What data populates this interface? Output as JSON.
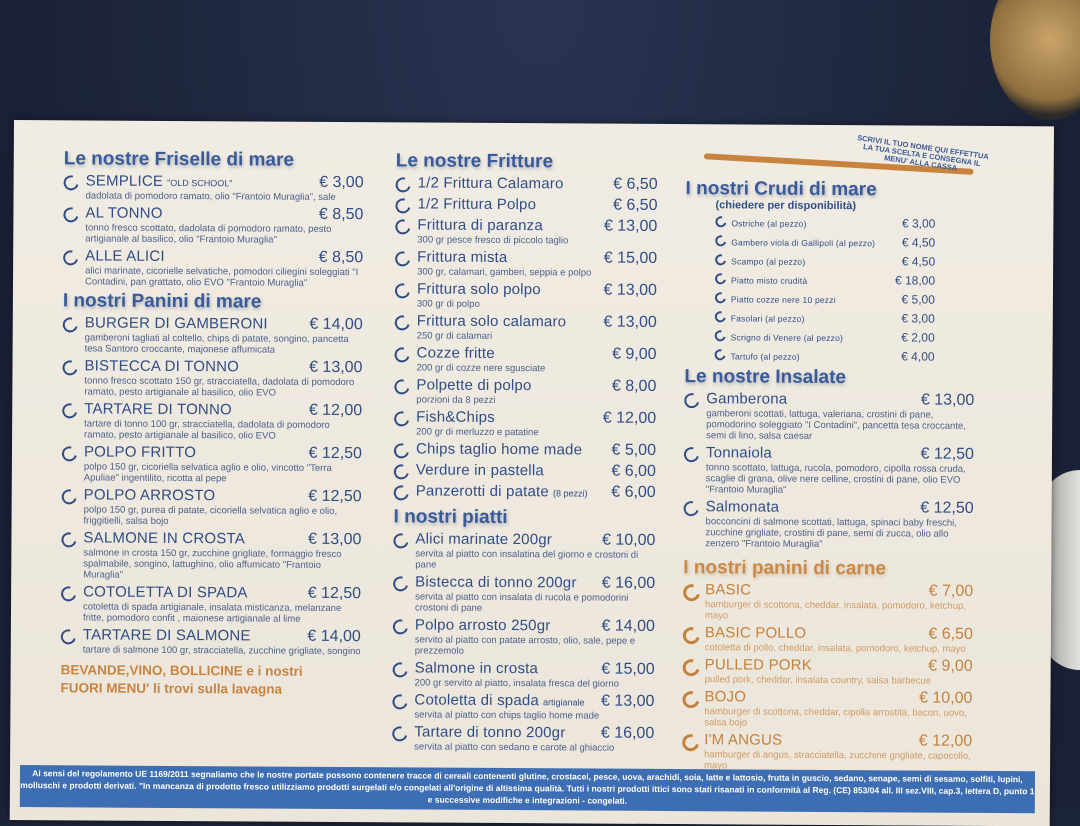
{
  "colors": {
    "blue": "#2f4d86",
    "orange": "#c8843f",
    "band": "#3d6db3"
  },
  "header_note": "SCRIVI IL TUO NOME QUI EFFETTUA LA TUA SCELTA E CONSEGNA IL MENU' ALLA CASSA",
  "sections": [
    {
      "id": "friselle",
      "column": "left",
      "title": "Le nostre Friselle di mare",
      "items": [
        {
          "name": "Semplice",
          "note": "\"OLD SCHOOL\"",
          "price": "€ 3,00",
          "desc": "dadolata di pomodoro ramato, olio \"Frantoio Muraglia\", sale"
        },
        {
          "name": "Al tonno",
          "price": "€ 8,50",
          "desc": "tonno fresco scottato, dadolata di pomodoro ramato, pesto artigianale al basilico, olio \"Frantoio Muraglia\""
        },
        {
          "name": "Alle alici",
          "price": "€ 8,50",
          "desc": "alici marinate, cicorielle selvatiche, pomodori ciliegini soleggiati \"I Contadini, pan grattato, olio EVO \"Frantoio Muraglia\""
        }
      ]
    },
    {
      "id": "panini-mare",
      "column": "left",
      "title": "I nostri Panini di mare",
      "items": [
        {
          "name": "Burger di gamberoni",
          "price": "€ 14,00",
          "desc": "gamberoni tagliati al coltello, chips di patate, songino, pancetta tesa Santoro croccante, majonese affumicata"
        },
        {
          "name": "Bistecca di tonno",
          "price": "€ 13,00",
          "desc": "tonno fresco scottato 150 gr, stracciatella, dadolata di pomodoro ramato, pesto artigianale al basilico, olio EVO"
        },
        {
          "name": "Tartare di tonno",
          "price": "€ 12,00",
          "desc": "tartare di tonno 100 gr, stracciatella, dadolata di pomodoro ramato, pesto artigianale al basilico, olio EVO"
        },
        {
          "name": "Polpo fritto",
          "price": "€ 12,50",
          "desc": "polpo 150 gr, cicoriella selvatica aglio e olio, vincotto \"Terra Apuliae\" ingentilito, ricotta al pepe"
        },
        {
          "name": "Polpo arrosto",
          "price": "€ 12,50",
          "desc": "polpo 150 gr, purea di patate, cicoriella selvatica aglio e olio, friggitielli, salsa bojo"
        },
        {
          "name": "Salmone in crosta",
          "price": "€ 13,00",
          "desc": "salmone in crosta 150 gr, zucchine grigliate, formaggio fresco spalmabile, songino, lattughino, olio affumicato \"Frantoio Muraglia\""
        },
        {
          "name": "Cotoletta di spada",
          "price": "€ 12,50",
          "desc": "cotoletta di spada artigianale, insalata misticanza, melanzane fritte, pomodoro confit , maionese artigianale al lime"
        },
        {
          "name": "Tartare di salmone",
          "price": "€ 14,00",
          "desc": "tartare di salmone 100 gr, stracciatella, zucchine grigliate, songino"
        }
      ]
    },
    {
      "id": "fritture",
      "column": "middle",
      "title": "Le nostre Fritture",
      "items": [
        {
          "name": "1/2 Frittura Calamaro",
          "price": "€ 6,50"
        },
        {
          "name": "1/2 Frittura Polpo",
          "price": "€ 6,50"
        },
        {
          "name": "Frittura di paranza",
          "price": "€ 13,00",
          "desc": "300 gr pesce fresco di piccolo taglio"
        },
        {
          "name": "Frittura mista",
          "price": "€ 15,00",
          "desc": "300 gr, calamari, gamberi, seppia e polpo"
        },
        {
          "name": "Frittura solo polpo",
          "price": "€ 13,00",
          "desc": "300 gr di polpo"
        },
        {
          "name": "Frittura solo calamaro",
          "price": "€ 13,00",
          "desc": "250 gr di calamari"
        },
        {
          "name": "Cozze fritte",
          "price": "€ 9,00",
          "desc": "200 gr di cozze nere sgusciate"
        },
        {
          "name": "Polpette di polpo",
          "price": "€ 8,00",
          "desc": "porzioni da 8 pezzi"
        },
        {
          "name": "Fish&Chips",
          "price": "€ 12,00",
          "desc": "200 gr di merluzzo e patatine"
        },
        {
          "name": "Chips taglio home made",
          "price": "€ 5,00"
        },
        {
          "name": "Verdure in pastella",
          "price": "€ 6,00"
        },
        {
          "name": "Panzerotti di patate",
          "note": "(8 pezzi)",
          "price": "€ 6,00"
        }
      ]
    },
    {
      "id": "piatti",
      "column": "middle",
      "title": "I nostri piatti",
      "items": [
        {
          "name": "Alici marinate 200gr",
          "price": "€ 10,00",
          "desc": "servita al piatto con insalatina del giorno e crostoni di pane"
        },
        {
          "name": "Bistecca di tonno 200gr",
          "price": "€ 16,00",
          "desc": "servita al piatto con insalata di rucola e pomodorini crostoni di pane"
        },
        {
          "name": "Polpo arrosto 250gr",
          "price": "€ 14,00",
          "desc": "servito al piatto con patate arrosto, olio, sale, pepe e prezzemolo"
        },
        {
          "name": "Salmone in crosta",
          "price": "€ 15,00",
          "desc": "200 gr servito al piatto, insalata fresca del giorno"
        },
        {
          "name": "Cotoletta di spada",
          "note": "artigianale",
          "price": "€ 13,00",
          "desc": "servita al piatto con chips taglio home made"
        },
        {
          "name": "Tartare di tonno 200gr",
          "price": "€ 16,00",
          "desc": "servita al piatto con sedano e carote al ghiaccio"
        }
      ]
    },
    {
      "id": "crudi",
      "column": "right",
      "title": "I nostri Crudi di mare",
      "subtitle": "(chiedere per disponibilità)",
      "items": [
        {
          "name": "Ostriche (al pezzo)",
          "price": "€ 3,00"
        },
        {
          "name": "Gambero viola di Gallipoli (al pezzo)",
          "price": "€ 4,50"
        },
        {
          "name": "Scampo (al pezzo)",
          "price": "€ 4,50"
        },
        {
          "name": "Piatto misto crudità",
          "price": "€ 18,00"
        },
        {
          "name": "Piatto cozze nere 10 pezzi",
          "price": "€ 5,00"
        },
        {
          "name": "Fasolari (al pezzo)",
          "price": "€ 3,00"
        },
        {
          "name": "Scrigno di Venere (al pezzo)",
          "price": "€ 2,00"
        },
        {
          "name": "Tartufo (al pezzo)",
          "price": "€ 4,00"
        }
      ]
    },
    {
      "id": "insalate",
      "column": "right",
      "title": "Le nostre Insalate",
      "items": [
        {
          "name": "Gamberona",
          "price": "€ 13,00",
          "desc": "gamberoni scottati, lattuga, valeriana, crostini di pane, pomodorino soleggiato \"I Contadini\", pancetta tesa croccante, semi di lino, salsa caesar"
        },
        {
          "name": "Tonnaiola",
          "price": "€ 12,50",
          "desc": "tonno scottato, lattuga, rucola, pomodoro, cipolla rossa cruda, scaglie di grana, olive nere celline, crostini di pane, olio EVO \"Frantoio Muraglia\""
        },
        {
          "name": "Salmonata",
          "price": "€ 12,50",
          "desc": "bocconcini di salmone scottati, lattuga, spinaci baby freschi, zucchine grigliate, crostini di pane, semi di zucca, olio allo zenzero \"Frantoio Muraglia\""
        }
      ]
    },
    {
      "id": "carne",
      "column": "right",
      "title": "I nostri panini di carne",
      "items": [
        {
          "name": "Basic",
          "price": "€ 7,00",
          "desc": "hamburger di scottona, cheddar, insalata, pomodoro, ketchup, mayo"
        },
        {
          "name": "Basic pollo",
          "price": "€ 6,50",
          "desc": "cotoletta di pollo, cheddar, insalata, pomodoro, ketchup, mayo"
        },
        {
          "name": "Pulled pork",
          "price": "€ 9,00",
          "desc": "pulled pork, cheddar, insalata country, salsa barbecue"
        },
        {
          "name": "Bojo",
          "price": "€ 10,00",
          "desc": "hamburger di scottona, cheddar, cipolla arrostita, bacon, uovo, salsa bojo"
        },
        {
          "name": "I'm Angus",
          "price": "€ 12,00",
          "desc": "hamburger di angus, stracciatella, zucchine grigliate, capocollo, mayo"
        }
      ]
    }
  ],
  "drinks_note": {
    "line1": "BEVANDE,VINO, BOLLICINE e i nostri",
    "line2": "FUORI MENU' li trovi sulla lavagna"
  },
  "allergen_notice": "Ai sensi del regolamento UE 1169/2011 segnaliamo che le nostre portate possono contenere tracce di cereali contenenti glutine, crostacei, pesce, uova, arachidi, soia, latte e lattosio, frutta in guscio, sedano, senape, semi di sesamo, solfiti, lupini, molluschi e prodotti derivati. \"In mancanza di prodotto fresco utilizziamo prodotti surgelati e/o congelati all'origine di altissima qualità. Tutti i nostri prodotti ittici sono stati risanati in conformità al Reg. (CE) 853/04 all. III sez.VIII, cap.3, lettera D, punto 1 e successive modifiche e integrazioni - congelati."
}
